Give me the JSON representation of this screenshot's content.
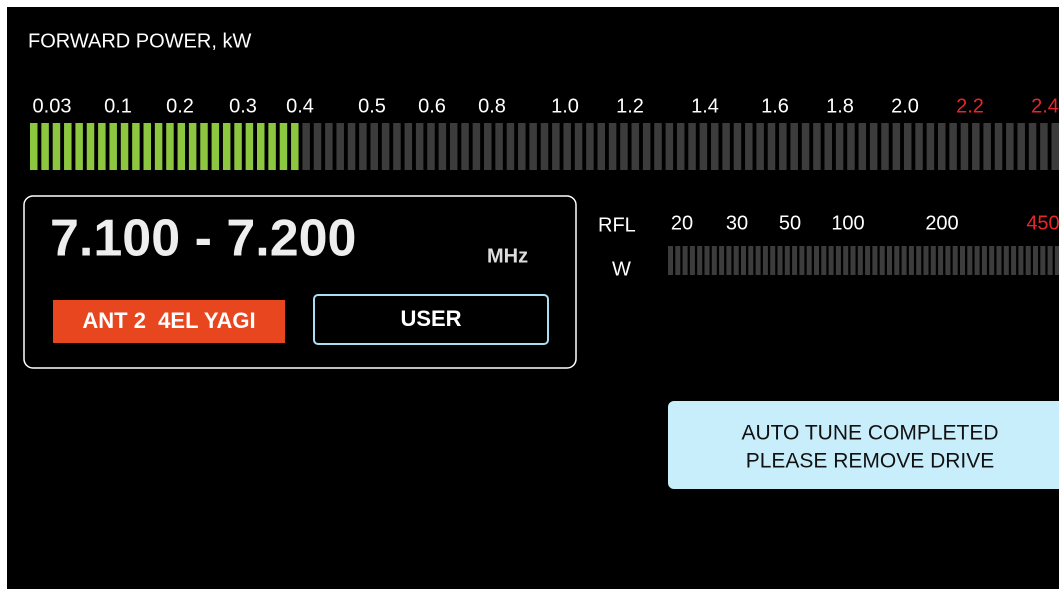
{
  "forward_power": {
    "title": "FORWARD POWER, kW",
    "scale": [
      {
        "text": "0.03"
      },
      {
        "text": "0.1"
      },
      {
        "text": "0.2"
      },
      {
        "text": "0.3"
      },
      {
        "text": "0.4"
      },
      {
        "text": "0.5"
      },
      {
        "text": "0.6"
      },
      {
        "text": "0.8"
      },
      {
        "text": "1.0"
      },
      {
        "text": "1.2"
      },
      {
        "text": "1.4"
      },
      {
        "text": "1.6"
      },
      {
        "text": "1.8"
      },
      {
        "text": "2.0"
      },
      {
        "text": "2.2",
        "warning": true
      },
      {
        "text": "2.4",
        "warning": true
      }
    ]
  },
  "band": {
    "frequency": "7.100 - 7.200",
    "unit": "MHz",
    "antenna": "ANT 2  4EL YAGI",
    "mode": "USER"
  },
  "reflected_power": {
    "label": "RFL",
    "unit": "W",
    "scale": [
      {
        "text": "20"
      },
      {
        "text": "30"
      },
      {
        "text": "50"
      },
      {
        "text": "100"
      },
      {
        "text": "200"
      },
      {
        "text": "450",
        "warning": true
      }
    ]
  },
  "message": {
    "lines": [
      "AUTO TUNE COMPLETED",
      "PLEASE REMOVE DRIVE"
    ]
  }
}
